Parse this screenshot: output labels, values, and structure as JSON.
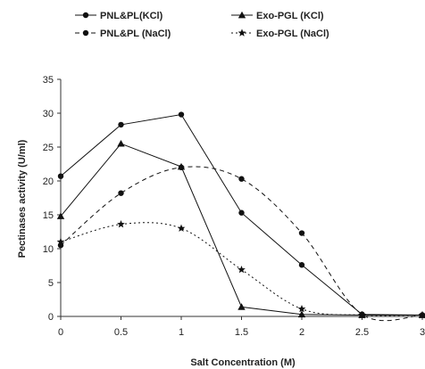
{
  "chart_data": {
    "type": "line",
    "xlabel": "Salt Concentration (M)",
    "ylabel": "Pectinases activity (U/ml)",
    "xlim": [
      0,
      3
    ],
    "ylim": [
      0,
      35
    ],
    "x_ticks": [
      "0",
      "0.5",
      "1",
      "1.5",
      "2",
      "2.5",
      "3"
    ],
    "y_ticks": [
      "0",
      "5",
      "10",
      "15",
      "20",
      "25",
      "30",
      "35"
    ],
    "grid": false,
    "legend_position": "top",
    "series": [
      {
        "name": "PNL&PL(KCl)",
        "marker": "circle",
        "line_style": "solid",
        "smooth": false,
        "x": [
          0,
          0.5,
          1,
          1.5,
          2,
          2.5,
          3
        ],
        "y": [
          20.7,
          28.3,
          29.8,
          15.3,
          7.6,
          0.3,
          0.2
        ]
      },
      {
        "name": "PNL&PL (NaCl)",
        "marker": "circle",
        "line_style": "dashed",
        "smooth": true,
        "x": [
          0,
          0.5,
          1,
          1.5,
          2,
          2.5,
          3
        ],
        "y": [
          10.5,
          18.2,
          22.0,
          20.3,
          12.3,
          0.3,
          0.2
        ]
      },
      {
        "name": "Exo-PGL (KCl)",
        "marker": "triangle",
        "line_style": "solid",
        "smooth": false,
        "x": [
          0,
          0.5,
          1,
          1.5,
          2,
          2.5,
          3
        ],
        "y": [
          14.8,
          25.5,
          22.1,
          1.4,
          0.3,
          0.2,
          0.2
        ]
      },
      {
        "name": "Exo-PGL (NaCl)",
        "marker": "star",
        "line_style": "dotted",
        "smooth": true,
        "x": [
          0,
          0.5,
          1,
          1.5,
          2,
          2.5,
          3
        ],
        "y": [
          11.0,
          13.6,
          13.0,
          6.9,
          1.1,
          0.2,
          0.2
        ]
      }
    ]
  }
}
